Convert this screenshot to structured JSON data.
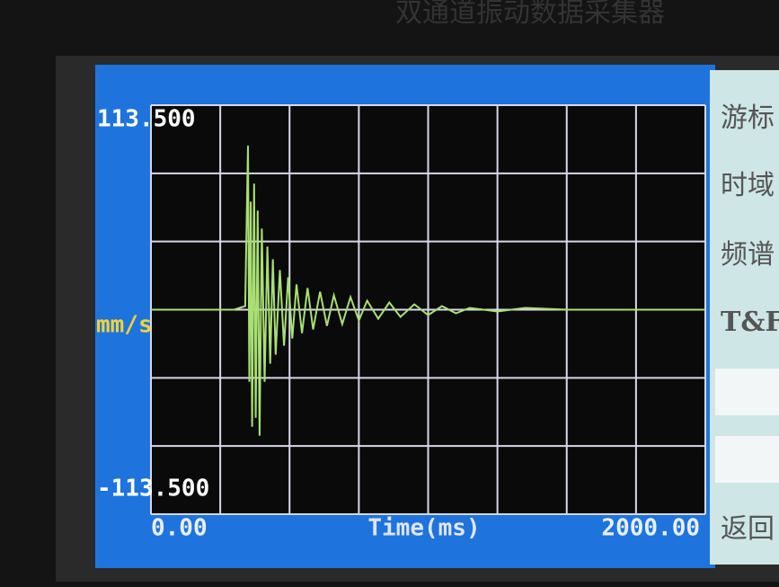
{
  "device_title": "双通道振动数据采集器",
  "chart_data": {
    "type": "line",
    "y_label": "mm/s",
    "x_label": "Time(ms)",
    "xlim": [
      0,
      2000
    ],
    "ylim": [
      -113.5,
      113.5
    ],
    "xticks": [
      {
        "value": 0,
        "label": "0.00"
      },
      {
        "value": 2000,
        "label": "2000.00"
      }
    ],
    "yticks": [
      {
        "value": -113.5,
        "label": "-113.500"
      },
      {
        "value": 113.5,
        "label": "113.500"
      }
    ],
    "grid": true,
    "grid_divisions": {
      "x": 8,
      "y": 6
    },
    "series": [
      {
        "color": "#a9df73",
        "x": [
          0,
          300,
          340,
          350,
          355,
          360,
          365,
          372,
          378,
          385,
          392,
          400,
          410,
          420,
          430,
          440,
          450,
          465,
          480,
          495,
          510,
          525,
          545,
          565,
          585,
          610,
          635,
          660,
          690,
          720,
          750,
          780,
          820,
          860,
          900,
          950,
          1000,
          1050,
          1100,
          1150,
          1250,
          1350,
          1500,
          2000
        ],
        "values": [
          0,
          0,
          2,
          91,
          -40,
          60,
          -65,
          70,
          -60,
          55,
          -70,
          45,
          -40,
          35,
          -30,
          28,
          -25,
          22,
          -20,
          18,
          -16,
          14,
          -13,
          12,
          -11,
          10,
          -9,
          8,
          -8,
          7,
          -6,
          5,
          -5,
          4,
          -4,
          3,
          -3,
          2,
          -2,
          1,
          -1,
          1,
          0,
          0
        ]
      }
    ]
  },
  "buttons": [
    "游标",
    "时域",
    "频谱",
    "T&F",
    "返回"
  ]
}
